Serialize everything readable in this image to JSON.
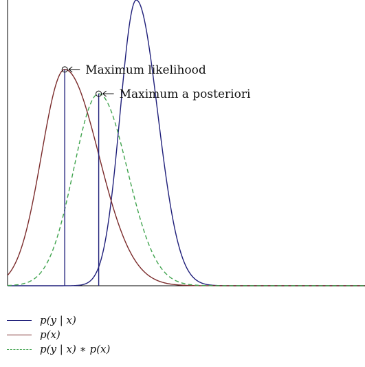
{
  "chart_data": {
    "type": "line",
    "title": "",
    "xlabel": "",
    "ylabel": "",
    "grid": false,
    "legend_position": "bottom-left",
    "x_range": [
      0,
      100
    ],
    "y_range": [
      0,
      1.0
    ],
    "series": [
      {
        "name": "p(y | x)",
        "color": "#1f1f7a",
        "style": "solid",
        "peak_x": 36.0,
        "peak_y": 1.0,
        "sigma_left": 4.5,
        "sigma_right": 6.0
      },
      {
        "name": "p(x)",
        "color": "#7a2a2a",
        "style": "solid",
        "peak_x": 16.0,
        "peak_y": 0.757,
        "sigma_left": 6.5,
        "sigma_right": 9.5
      },
      {
        "name": "p(y | x) ∗ p(x)",
        "color": "#3fa34d",
        "style": "dashed",
        "peak_x": 25.5,
        "peak_y": 0.672,
        "sigma_left": 7.0,
        "sigma_right": 8.0
      }
    ],
    "annotations": [
      {
        "label": "Maximum likelihood",
        "x": 16.0,
        "y": 0.757
      },
      {
        "label": "Maximum a posteriori",
        "x": 25.5,
        "y": 0.672
      }
    ]
  },
  "legend": [
    {
      "label": "p(y | x)",
      "color": "#1f1f7a",
      "style": "solid"
    },
    {
      "label": "p(x)",
      "color": "#7a2a2a",
      "style": "solid"
    },
    {
      "label": "p(y | x) ∗ p(x)",
      "color": "#3fa34d",
      "style": "dashed"
    }
  ]
}
